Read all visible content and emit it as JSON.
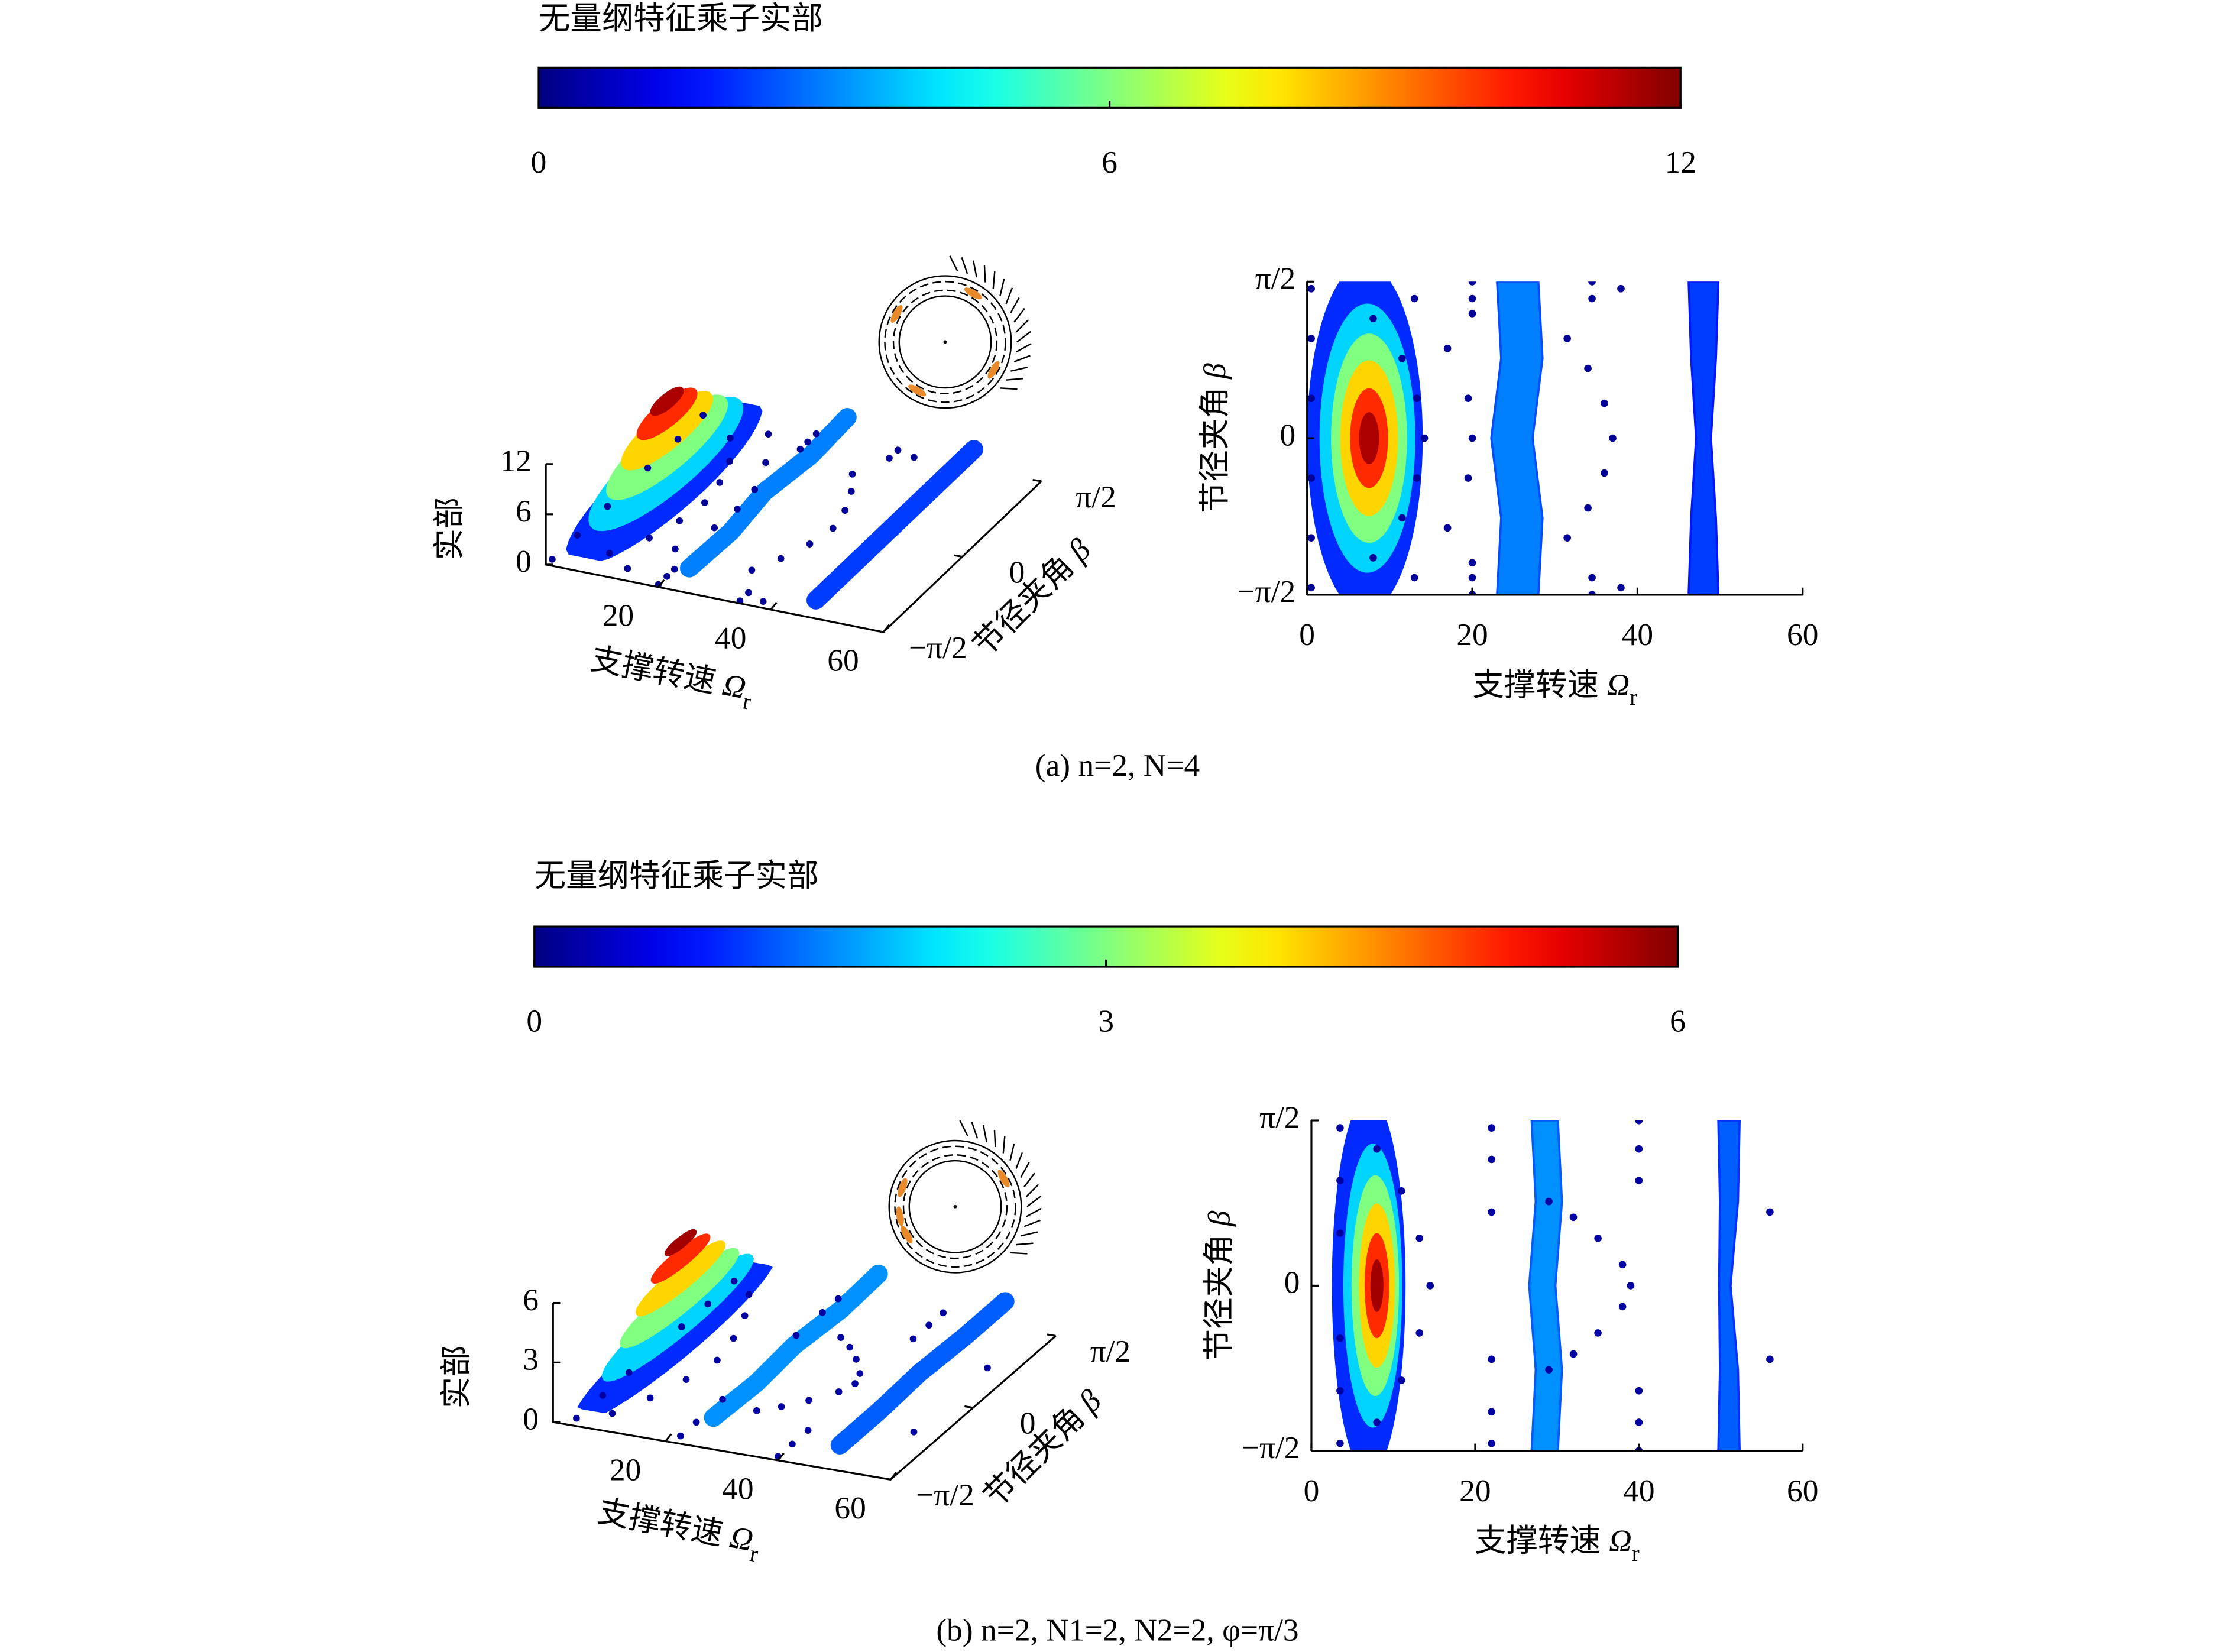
{
  "chart_data": [
    {
      "type": "scatter3d-pair",
      "colormap": "jet",
      "colorbar": {
        "title": "无量纲特征乘子实部",
        "lim": [
          0,
          12
        ],
        "ticks": [
          0,
          6,
          12
        ]
      },
      "zlabel": "实部",
      "zlim": [
        0,
        12
      ],
      "zticks": [
        0,
        6,
        12
      ],
      "xlabel": {
        "text": "支撑转速",
        "symbol": "Ω",
        "sub": "r"
      },
      "ylabel": {
        "text": "节径夹角",
        "symbol": "β"
      },
      "xlim": [
        0,
        60
      ],
      "xticks": [
        0,
        20,
        40,
        60
      ],
      "xticks_3d": [
        20,
        40,
        60
      ],
      "ylim": [
        -1.5708,
        1.5708
      ],
      "yticks": [
        {
          "value": -1.5708,
          "label": "−π/2"
        },
        0,
        {
          "value": 1.5708,
          "label": "π/2"
        }
      ],
      "blob": [
        {
          "level": 2,
          "cx": 7,
          "cy": 0,
          "rx": 7,
          "ry": 1.75
        },
        {
          "level": 4,
          "cx": 7.3,
          "cy": 0,
          "rx": 5.8,
          "ry": 1.35
        },
        {
          "level": 6,
          "cx": 7.5,
          "cy": 0,
          "rx": 4.6,
          "ry": 1.05
        },
        {
          "level": 8,
          "cx": 7.5,
          "cy": 0,
          "rx": 3.5,
          "ry": 0.78
        },
        {
          "level": 10,
          "cx": 7.5,
          "cy": 0,
          "rx": 2.3,
          "ry": 0.5
        },
        {
          "level": 11.5,
          "cx": 7.5,
          "cy": 0,
          "rx": 1.2,
          "ry": 0.26
        }
      ],
      "bands": [
        {
          "level": 3,
          "y": [
            -1.5708,
            -0.8,
            0,
            0.8,
            1.5708
          ],
          "x": [
            25.5,
            26,
            24.8,
            26,
            25.5
          ],
          "width": [
            5,
            5,
            5,
            5,
            5
          ]
        },
        {
          "level": 2.2,
          "y": [
            -1.5708,
            -0.8,
            0,
            0.8,
            1.5708
          ],
          "x": [
            48,
            48,
            48,
            48,
            48
          ],
          "width": [
            3.6,
            3,
            1.8,
            3,
            3.6
          ]
        }
      ],
      "dots": [
        {
          "level": 0.3,
          "x": [
            8,
            11.5,
            13.3,
            14.2,
            13.3,
            11.5,
            8
          ],
          "y": [
            -1.2,
            -0.8,
            -0.4,
            0,
            0.4,
            0.8,
            1.2
          ]
        },
        {
          "level": 0.3,
          "x": [
            13,
            17,
            19.5,
            20,
            19.5,
            17,
            13
          ],
          "y": [
            -1.4,
            -0.9,
            -0.4,
            0,
            0.4,
            0.9,
            1.4
          ]
        },
        {
          "level": 0.3,
          "x": [
            20,
            20,
            20,
            20,
            20,
            20
          ],
          "y": [
            -1.57,
            -1.4,
            -1.25,
            1.25,
            1.4,
            1.57
          ]
        },
        {
          "level": 0.3,
          "x": [
            31.5,
            34,
            36,
            37,
            36,
            34,
            31.5
          ],
          "y": [
            -1.0,
            -0.7,
            -0.35,
            0,
            0.35,
            0.7,
            1.0
          ]
        },
        {
          "level": 0.3,
          "x": [
            34.5,
            34.5,
            34.5,
            34.5,
            38,
            38
          ],
          "y": [
            -1.57,
            -1.4,
            1.4,
            1.57,
            -1.5,
            1.5
          ]
        },
        {
          "level": 0.3,
          "x": [
            0.5,
            0.5,
            0.5,
            0.5,
            0.5,
            0.5
          ],
          "y": [
            -1.5,
            -1.0,
            -0.4,
            0.4,
            1.0,
            1.5
          ]
        }
      ],
      "caption": "(a) n=2, N=4"
    },
    {
      "type": "scatter3d-pair",
      "colormap": "jet",
      "colorbar": {
        "title": "无量纲特征乘子实部",
        "lim": [
          0,
          6
        ],
        "ticks": [
          0,
          3,
          6
        ]
      },
      "zlabel": "实部",
      "zlim": [
        0,
        6
      ],
      "zticks": [
        0,
        3,
        6
      ],
      "xlabel": {
        "text": "支撑转速",
        "symbol": "Ω",
        "sub": "r"
      },
      "ylabel": {
        "text": "节径夹角",
        "symbol": "β"
      },
      "xlim": [
        0,
        60
      ],
      "xticks": [
        0,
        20,
        40,
        60
      ],
      "xticks_3d": [
        20,
        40,
        60
      ],
      "ylim": [
        -1.5708,
        1.5708
      ],
      "yticks": [
        {
          "value": -1.5708,
          "label": "−π/2"
        },
        0,
        {
          "value": 1.5708,
          "label": "π/2"
        }
      ],
      "blob": [
        {
          "level": 1,
          "cx": 7,
          "cy": 0,
          "rx": 4.5,
          "ry": 1.8
        },
        {
          "level": 2,
          "cx": 7.5,
          "cy": 0,
          "rx": 3.6,
          "ry": 1.35
        },
        {
          "level": 3,
          "cx": 7.8,
          "cy": 0,
          "rx": 2.9,
          "ry": 1.05
        },
        {
          "level": 4,
          "cx": 8,
          "cy": 0,
          "rx": 2.2,
          "ry": 0.78
        },
        {
          "level": 5,
          "cx": 8,
          "cy": 0,
          "rx": 1.5,
          "ry": 0.5
        },
        {
          "level": 5.8,
          "cx": 8,
          "cy": 0,
          "rx": 0.8,
          "ry": 0.25
        }
      ],
      "bands": [
        {
          "level": 1.6,
          "y": [
            -1.5708,
            -0.8,
            0,
            0.8,
            1.5708
          ],
          "x": [
            28.5,
            29,
            28.2,
            29,
            28.5
          ],
          "width": [
            3.2,
            3.2,
            3.2,
            3.2,
            3.2
          ]
        },
        {
          "level": 1.3,
          "y": [
            -1.5708,
            -0.8,
            0,
            0.8,
            1.5708
          ],
          "x": [
            51,
            51,
            50.5,
            51,
            51
          ],
          "width": [
            2.6,
            2.2,
            1.4,
            2.2,
            2.6
          ]
        }
      ],
      "dots": [
        {
          "level": 0.2,
          "x": [
            8,
            11,
            13.2,
            14.5,
            13.2,
            11,
            8
          ],
          "y": [
            -1.3,
            -0.9,
            -0.45,
            0,
            0.45,
            0.9,
            1.3
          ]
        },
        {
          "level": 0.2,
          "x": [
            29,
            32,
            35,
            38,
            39,
            38,
            35,
            32,
            29
          ],
          "y": [
            -0.8,
            -0.65,
            -0.45,
            -0.2,
            0,
            0.2,
            0.45,
            0.65,
            0.8
          ]
        },
        {
          "level": 0.2,
          "x": [
            22,
            22,
            22,
            22,
            22,
            22
          ],
          "y": [
            -1.5,
            -1.2,
            -0.7,
            0.7,
            1.2,
            1.5
          ]
        },
        {
          "level": 0.2,
          "x": [
            40,
            40,
            40,
            40,
            40,
            40
          ],
          "y": [
            -1.57,
            -1.3,
            -1.0,
            1.0,
            1.3,
            1.57
          ]
        },
        {
          "level": 0.2,
          "x": [
            56,
            56
          ],
          "y": [
            -0.7,
            0.7
          ]
        },
        {
          "level": 0.2,
          "x": [
            3.5,
            3.5,
            3.5,
            3.5,
            3.5,
            3.5
          ],
          "y": [
            -1.5,
            -1.0,
            -0.5,
            0.5,
            1.0,
            1.5
          ]
        }
      ],
      "caption": "(b) n=2, N1=2, N2=2, φ=π/3"
    }
  ]
}
